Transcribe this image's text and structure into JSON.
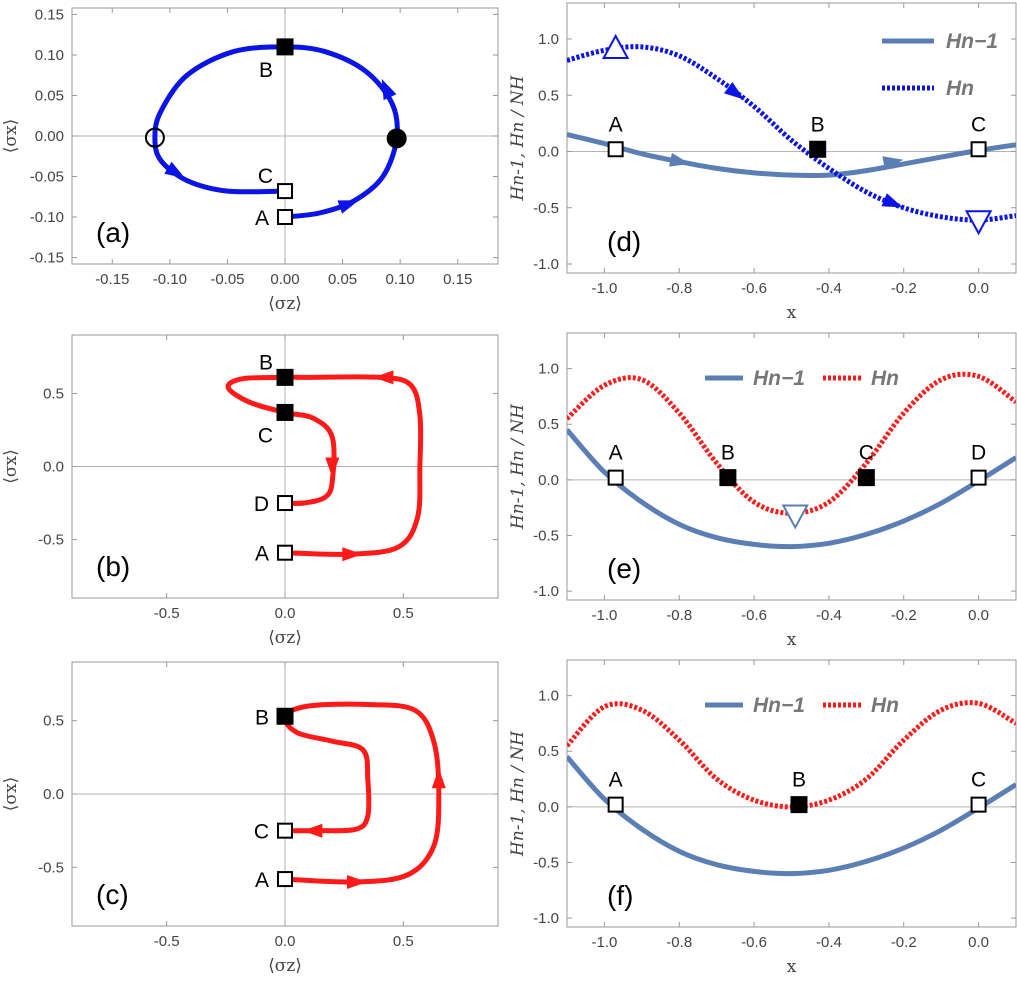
{
  "colors": {
    "blue": "#0a14e6",
    "red": "#ff1a1a",
    "steel": "#5b7fb5",
    "frame": "#999999",
    "zero": "#b5b5b5"
  },
  "chart_data": [
    {
      "id": "a",
      "type": "line",
      "panel_label": "(a)",
      "xlabel": "⟨σz⟩",
      "ylabel": "⟨σx⟩",
      "xlim": [
        -0.185,
        0.185
      ],
      "ylim": [
        -0.158,
        0.158
      ],
      "xticks": [
        -0.15,
        -0.1,
        -0.05,
        0.0,
        0.05,
        0.1,
        0.15
      ],
      "xtick_labels": [
        "-0.15",
        "-0.10",
        "-0.05",
        "0.00",
        "0.05",
        "0.10",
        "0.15"
      ],
      "yticks": [
        -0.15,
        -0.1,
        -0.05,
        0.0,
        0.05,
        0.1,
        0.15
      ],
      "ytick_labels": [
        "-0.15",
        "-0.10",
        "-0.05",
        "0.00",
        "0.05",
        "0.10",
        "0.15"
      ],
      "trajectory": {
        "color": "blue",
        "points": [
          [
            0.0,
            -0.1
          ],
          [
            0.03,
            -0.095
          ],
          [
            0.06,
            -0.08
          ],
          [
            0.085,
            -0.05
          ],
          [
            0.097,
            -0.003
          ],
          [
            0.093,
            0.04
          ],
          [
            0.07,
            0.08
          ],
          [
            0.035,
            0.104
          ],
          [
            0.0,
            0.11
          ],
          [
            -0.045,
            0.104
          ],
          [
            -0.085,
            0.075
          ],
          [
            -0.108,
            0.03
          ],
          [
            -0.113,
            -0.002
          ],
          [
            -0.108,
            -0.03
          ],
          [
            -0.085,
            -0.055
          ],
          [
            -0.05,
            -0.068
          ],
          [
            0.0,
            -0.068
          ]
        ]
      },
      "arrows": [
        [
          0.055,
          -0.084,
          1,
          0.35
        ],
        [
          0.088,
          0.058,
          -0.45,
          1
        ],
        [
          -0.095,
          -0.045,
          0.9,
          -0.55
        ]
      ],
      "markers": [
        {
          "label": "A",
          "x": 0.0,
          "y": -0.1,
          "style": "open-square",
          "label_side": "left"
        },
        {
          "label": "C",
          "x": 0.0,
          "y": -0.068,
          "style": "open-square",
          "label_side": "upleft"
        },
        {
          "label": "B",
          "x": 0.0,
          "y": 0.11,
          "style": "filled-square",
          "label_side": "below-left"
        },
        {
          "label": "",
          "x": -0.113,
          "y": -0.002,
          "style": "open-circle"
        },
        {
          "label": "",
          "x": 0.097,
          "y": -0.003,
          "style": "filled-circle"
        }
      ]
    },
    {
      "id": "b",
      "type": "line",
      "panel_label": "(b)",
      "xlabel": "⟨σz⟩",
      "ylabel": "⟨σx⟩",
      "xlim": [
        -0.9,
        0.9
      ],
      "ylim": [
        -0.9,
        0.9
      ],
      "xticks": [
        -0.5,
        0.0,
        0.5
      ],
      "xtick_labels": [
        "-0.5",
        "0.0",
        "0.5"
      ],
      "yticks": [
        -0.5,
        0.0,
        0.5
      ],
      "ytick_labels": [
        "-0.5",
        "0.0",
        "0.5"
      ],
      "trajectory": {
        "color": "red",
        "points": [
          [
            0.0,
            -0.59
          ],
          [
            0.28,
            -0.6
          ],
          [
            0.48,
            -0.55
          ],
          [
            0.56,
            -0.35
          ],
          [
            0.57,
            0.0
          ],
          [
            0.57,
            0.35
          ],
          [
            0.53,
            0.56
          ],
          [
            0.4,
            0.61
          ],
          [
            0.1,
            0.61
          ],
          [
            0.0,
            0.61
          ],
          [
            -0.18,
            0.6
          ],
          [
            -0.24,
            0.54
          ],
          [
            -0.15,
            0.44
          ],
          [
            0.0,
            0.37
          ],
          [
            0.12,
            0.33
          ],
          [
            0.2,
            0.2
          ],
          [
            0.2,
            -0.1
          ],
          [
            0.17,
            -0.21
          ],
          [
            0.08,
            -0.25
          ],
          [
            0.0,
            -0.25
          ]
        ]
      },
      "arrows": [
        [
          0.28,
          -0.6,
          1,
          0
        ],
        [
          0.42,
          0.61,
          -1,
          0
        ],
        [
          0.2,
          0.0,
          0,
          -1
        ]
      ],
      "markers": [
        {
          "label": "A",
          "x": 0.0,
          "y": -0.59,
          "style": "open-square",
          "label_side": "left"
        },
        {
          "label": "D",
          "x": 0.0,
          "y": -0.25,
          "style": "open-square",
          "label_side": "left"
        },
        {
          "label": "C",
          "x": 0.0,
          "y": 0.37,
          "style": "filled-square",
          "label_side": "below-left"
        },
        {
          "label": "B",
          "x": 0.0,
          "y": 0.61,
          "style": "filled-square",
          "label_side": "upleft"
        }
      ]
    },
    {
      "id": "c",
      "type": "line",
      "panel_label": "(c)",
      "xlabel": "⟨σz⟩",
      "ylabel": "⟨σx⟩",
      "xlim": [
        -0.9,
        0.9
      ],
      "ylim": [
        -0.9,
        0.9
      ],
      "xticks": [
        -0.5,
        0.0,
        0.5
      ],
      "xtick_labels": [
        "-0.5",
        "0.0",
        "0.5"
      ],
      "yticks": [
        -0.5,
        0.0,
        0.5
      ],
      "ytick_labels": [
        "-0.5",
        "0.0",
        "0.5"
      ],
      "trajectory": {
        "color": "red",
        "points": [
          [
            0.0,
            -0.58
          ],
          [
            0.3,
            -0.6
          ],
          [
            0.52,
            -0.55
          ],
          [
            0.63,
            -0.35
          ],
          [
            0.65,
            0.0
          ],
          [
            0.63,
            0.35
          ],
          [
            0.55,
            0.57
          ],
          [
            0.35,
            0.61
          ],
          [
            0.1,
            0.6
          ],
          [
            0.0,
            0.53
          ],
          [
            0.05,
            0.42
          ],
          [
            0.2,
            0.36
          ],
          [
            0.33,
            0.3
          ],
          [
            0.35,
            0.1
          ],
          [
            0.35,
            -0.15
          ],
          [
            0.3,
            -0.24
          ],
          [
            0.15,
            -0.25
          ],
          [
            0.0,
            -0.25
          ]
        ]
      },
      "arrows": [
        [
          0.3,
          -0.6,
          1,
          0
        ],
        [
          0.65,
          0.1,
          0,
          1
        ],
        [
          0.12,
          -0.25,
          -1,
          0
        ]
      ],
      "markers": [
        {
          "label": "A",
          "x": 0.0,
          "y": -0.58,
          "style": "open-square",
          "label_side": "left"
        },
        {
          "label": "C",
          "x": 0.0,
          "y": -0.25,
          "style": "open-square",
          "label_side": "left"
        },
        {
          "label": "B",
          "x": 0.0,
          "y": 0.53,
          "style": "filled-square",
          "label_side": "left"
        }
      ]
    },
    {
      "id": "d",
      "type": "line",
      "panel_label": "(d)",
      "xlabel": "x",
      "ylabel": "Hn-1, Hn / NH",
      "xlim": [
        -1.1,
        0.1
      ],
      "ylim": [
        -1.08,
        1.32
      ],
      "xticks": [
        -1.0,
        -0.8,
        -0.6,
        -0.4,
        -0.2,
        0.0
      ],
      "xtick_labels": [
        "-1.0",
        "-0.8",
        "-0.6",
        "-0.4",
        "-0.2",
        "0.0"
      ],
      "yticks": [
        -1.0,
        -0.5,
        0.0,
        0.5,
        1.0
      ],
      "ytick_labels": [
        "-1.0",
        "-0.5",
        "0.0",
        "0.5",
        "1.0"
      ],
      "legend": {
        "layout": "vertical",
        "hn1_label": "Hn−1",
        "hn_label": "Hn"
      },
      "hn_color": "blue",
      "series": [
        {
          "name": "Hn−1",
          "style": "solid",
          "x": [
            -1.1,
            -1.0,
            -0.9,
            -0.8,
            -0.7,
            -0.6,
            -0.5,
            -0.4,
            -0.3,
            -0.2,
            -0.1,
            0.0,
            0.1
          ],
          "values": [
            0.15,
            0.07,
            -0.02,
            -0.09,
            -0.15,
            -0.19,
            -0.21,
            -0.21,
            -0.17,
            -0.11,
            -0.05,
            0.01,
            0.06
          ]
        },
        {
          "name": "Hn",
          "style": "dotted",
          "x": [
            -1.1,
            -1.0,
            -0.9,
            -0.8,
            -0.7,
            -0.6,
            -0.5,
            -0.4,
            -0.3,
            -0.2,
            -0.1,
            0.0,
            0.1
          ],
          "values": [
            0.81,
            0.9,
            0.93,
            0.85,
            0.65,
            0.4,
            0.1,
            -0.15,
            -0.36,
            -0.5,
            -0.58,
            -0.61,
            -0.57
          ]
        }
      ],
      "arrows": [
        [
          -0.8,
          -0.09,
          "s0"
        ],
        [
          -0.23,
          -0.09,
          "s0"
        ],
        [
          -0.65,
          0.52,
          "s1"
        ],
        [
          -0.23,
          -0.46,
          "s1"
        ]
      ],
      "markers": [
        {
          "label": "A",
          "x": -0.97,
          "y": 0.02,
          "style": "open-square"
        },
        {
          "label": "B",
          "x": -0.43,
          "y": 0.02,
          "style": "filled-square"
        },
        {
          "label": "C",
          "x": 0.0,
          "y": 0.02,
          "style": "open-square"
        },
        {
          "label": "",
          "x": -0.97,
          "y": 0.92,
          "style": "tri-up"
        },
        {
          "label": "",
          "x": 0.0,
          "y": -0.62,
          "style": "tri-down"
        }
      ]
    },
    {
      "id": "e",
      "type": "line",
      "panel_label": "(e)",
      "xlabel": "x",
      "ylabel": "Hn-1, Hn / NH",
      "xlim": [
        -1.1,
        0.1
      ],
      "ylim": [
        -1.08,
        1.32
      ],
      "xticks": [
        -1.0,
        -0.8,
        -0.6,
        -0.4,
        -0.2,
        0.0
      ],
      "xtick_labels": [
        "-1.0",
        "-0.8",
        "-0.6",
        "-0.4",
        "-0.2",
        "0.0"
      ],
      "yticks": [
        -1.0,
        -0.5,
        0.0,
        0.5,
        1.0
      ],
      "ytick_labels": [
        "-1.0",
        "-0.5",
        "0.0",
        "0.5",
        "1.0"
      ],
      "legend": {
        "layout": "horizontal",
        "hn1_label": "Hn−1",
        "hn_label": "Hn"
      },
      "hn_color": "red",
      "series": [
        {
          "name": "Hn−1",
          "style": "solid",
          "x": [
            -1.1,
            -1.0,
            -0.9,
            -0.8,
            -0.7,
            -0.6,
            -0.5,
            -0.4,
            -0.3,
            -0.2,
            -0.1,
            0.0,
            0.1
          ],
          "values": [
            0.45,
            0.07,
            -0.2,
            -0.4,
            -0.52,
            -0.58,
            -0.6,
            -0.57,
            -0.49,
            -0.37,
            -0.21,
            -0.01,
            0.2
          ]
        },
        {
          "name": "Hn",
          "style": "dotted",
          "x": [
            -1.1,
            -1.0,
            -0.9,
            -0.8,
            -0.7,
            -0.6,
            -0.5,
            -0.4,
            -0.3,
            -0.2,
            -0.1,
            0.0,
            0.1
          ],
          "values": [
            0.55,
            0.85,
            0.9,
            0.6,
            0.15,
            -0.2,
            -0.3,
            -0.2,
            0.15,
            0.6,
            0.9,
            0.93,
            0.7
          ]
        }
      ],
      "arrows": [],
      "markers": [
        {
          "label": "A",
          "x": -0.97,
          "y": 0.02,
          "style": "open-square"
        },
        {
          "label": "B",
          "x": -0.67,
          "y": 0.02,
          "style": "filled-square"
        },
        {
          "label": "C",
          "x": -0.3,
          "y": 0.02,
          "style": "filled-square"
        },
        {
          "label": "D",
          "x": 0.0,
          "y": 0.02,
          "style": "open-square"
        },
        {
          "label": "",
          "x": -0.49,
          "y": -0.32,
          "style": "tri-down-steel"
        }
      ]
    },
    {
      "id": "f",
      "type": "line",
      "panel_label": "(f)",
      "xlabel": "x",
      "ylabel": "Hn-1, Hn / NH",
      "xlim": [
        -1.1,
        0.1
      ],
      "ylim": [
        -1.08,
        1.32
      ],
      "xticks": [
        -1.0,
        -0.8,
        -0.6,
        -0.4,
        -0.2,
        0.0
      ],
      "xtick_labels": [
        "-1.0",
        "-0.8",
        "-0.6",
        "-0.4",
        "-0.2",
        "0.0"
      ],
      "yticks": [
        -1.0,
        -0.5,
        0.0,
        0.5,
        1.0
      ],
      "ytick_labels": [
        "-1.0",
        "-0.5",
        "0.0",
        "0.5",
        "1.0"
      ],
      "legend": {
        "layout": "horizontal",
        "hn1_label": "Hn−1",
        "hn_label": "Hn"
      },
      "hn_color": "red",
      "series": [
        {
          "name": "Hn−1",
          "style": "solid",
          "x": [
            -1.1,
            -1.0,
            -0.9,
            -0.8,
            -0.7,
            -0.6,
            -0.5,
            -0.4,
            -0.3,
            -0.2,
            -0.1,
            0.0,
            0.1
          ],
          "values": [
            0.45,
            0.07,
            -0.2,
            -0.4,
            -0.52,
            -0.58,
            -0.6,
            -0.57,
            -0.49,
            -0.37,
            -0.21,
            -0.01,
            0.2
          ]
        },
        {
          "name": "Hn",
          "style": "dotted",
          "x": [
            -1.1,
            -1.0,
            -0.9,
            -0.8,
            -0.7,
            -0.6,
            -0.5,
            -0.4,
            -0.3,
            -0.2,
            -0.1,
            0.0,
            0.1
          ],
          "values": [
            0.55,
            0.9,
            0.87,
            0.6,
            0.25,
            0.06,
            0.0,
            0.06,
            0.25,
            0.6,
            0.87,
            0.93,
            0.75
          ]
        }
      ],
      "arrows": [],
      "markers": [
        {
          "label": "A",
          "x": -0.97,
          "y": 0.02,
          "style": "open-square"
        },
        {
          "label": "B",
          "x": -0.48,
          "y": 0.02,
          "style": "filled-square"
        },
        {
          "label": "C",
          "x": 0.0,
          "y": 0.02,
          "style": "open-square"
        }
      ]
    }
  ]
}
